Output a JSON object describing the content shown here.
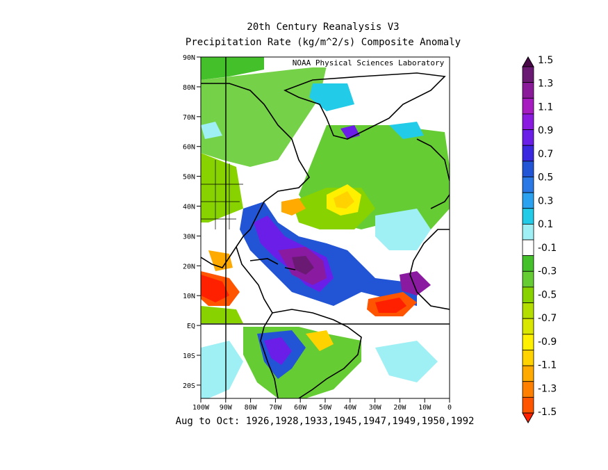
{
  "title_line1": "20th Century Reanalysis V3",
  "title_line2": "Precipitation Rate (kg/m^2/s) Composite Anomaly",
  "watermark": "NOAA Physical Sciences Laboratory",
  "caption": "Aug to Oct: 1926,1928,1933,1945,1947,1949,1950,1992",
  "lat_ticks": [
    "90N",
    "80N",
    "70N",
    "60N",
    "50N",
    "40N",
    "30N",
    "20N",
    "10N",
    "EQ",
    "10S",
    "20S"
  ],
  "lon_ticks": [
    "100W",
    "90W",
    "80W",
    "70W",
    "60W",
    "50W",
    "40W",
    "30W",
    "20W",
    "10W",
    "0"
  ],
  "colorbar": {
    "levels": [
      "1.5",
      "1.3",
      "1.1",
      "0.9",
      "0.7",
      "0.5",
      "0.3",
      "0.1",
      "-0.1",
      "-0.3",
      "-0.5",
      "-0.7",
      "-0.9",
      "-1.1",
      "-1.3",
      "-1.5"
    ],
    "colors_top_to_bottom": [
      "#4a0a4a",
      "#6a1a72",
      "#8a1a9a",
      "#a61cc0",
      "#8a1ae0",
      "#6a1ee8",
      "#3a28e0",
      "#2255d6",
      "#2a78e6",
      "#2aa2f0",
      "#22cce8",
      "#9ff0f4",
      "#ffffff",
      "#44c02a",
      "#66cc33",
      "#88d200",
      "#b4de00",
      "#d8e600",
      "#fff000",
      "#ffd200",
      "#ffaa00",
      "#ff8000",
      "#ff5500",
      "#ff2000"
    ]
  },
  "map": {
    "lon_range": [
      -100,
      0
    ],
    "lat_range": [
      -25,
      90
    ],
    "ocean_background": "#ffffff"
  }
}
